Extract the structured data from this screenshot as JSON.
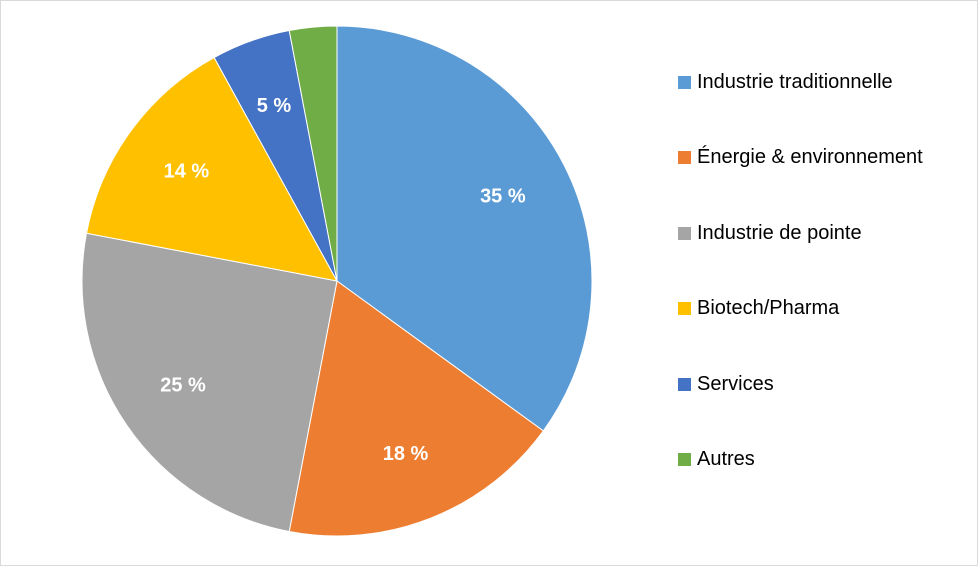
{
  "chart_data": {
    "type": "pie",
    "title": "",
    "legend_position": "right",
    "slices": [
      {
        "name": "Industrie traditionnelle",
        "value": 35,
        "label": "35 %",
        "color": "#5B9BD5"
      },
      {
        "name": "Énergie & environnement",
        "value": 18,
        "label": "18 %",
        "color": "#ED7D31"
      },
      {
        "name": "Industrie de pointe",
        "value": 25,
        "label": "25 %",
        "color": "#A5A5A5"
      },
      {
        "name": "Biotech/Pharma",
        "value": 14,
        "label": "14 %",
        "color": "#FFC000"
      },
      {
        "name": "Services",
        "value": 5,
        "label": "5 %",
        "color": "#4472C4"
      },
      {
        "name": "Autres",
        "value": 3,
        "label": "",
        "color": "#70AD47"
      }
    ]
  }
}
